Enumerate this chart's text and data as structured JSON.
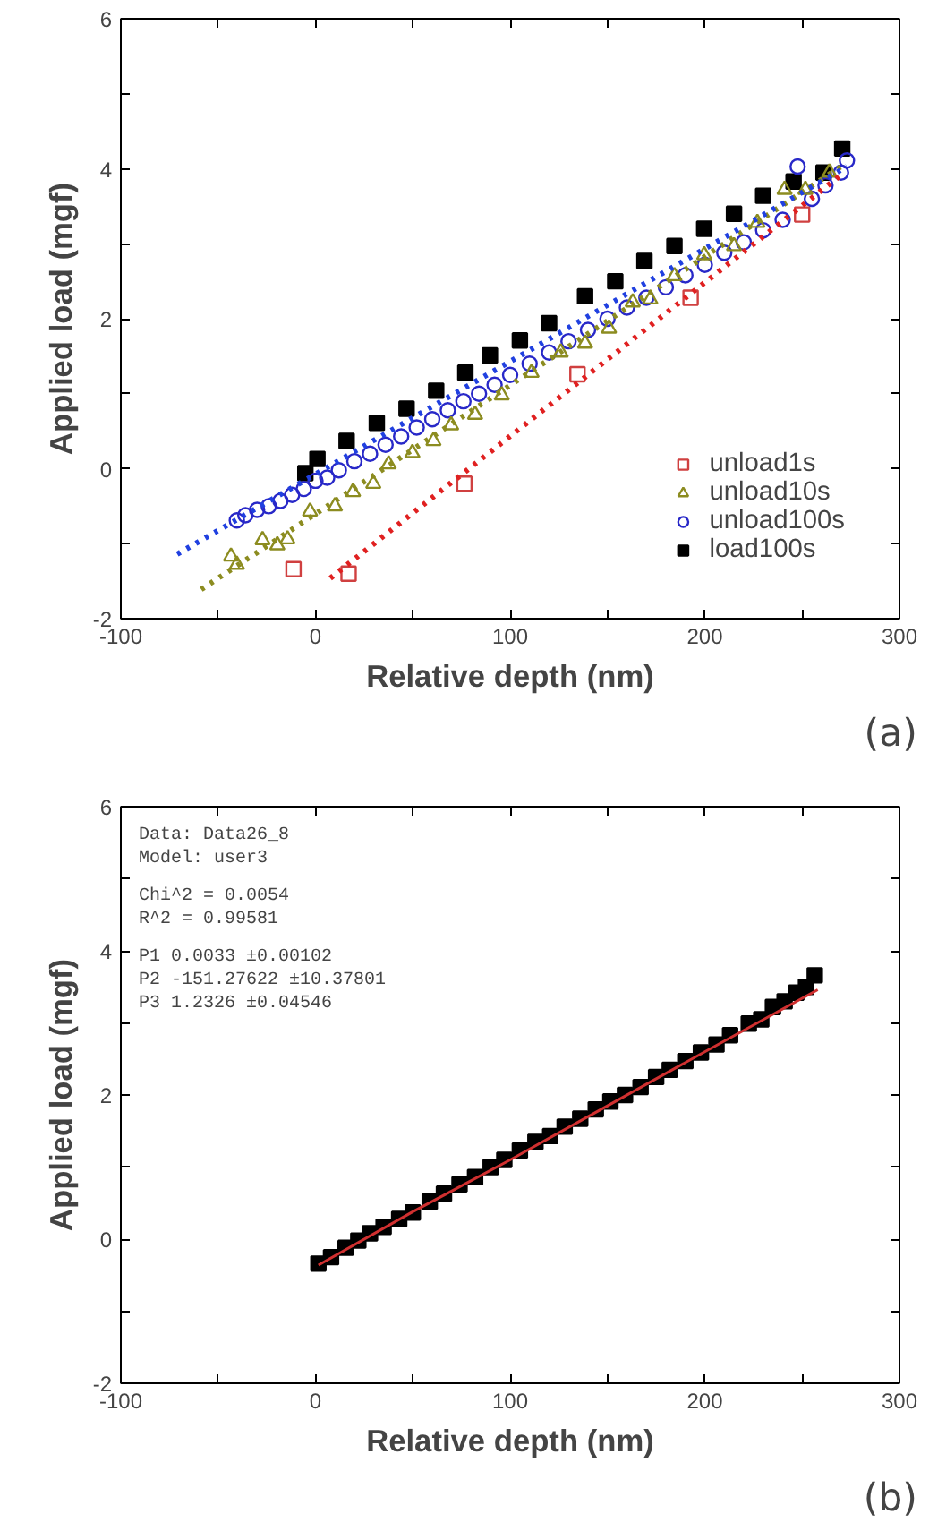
{
  "chart_data": [
    {
      "type": "scatter",
      "xlabel": "Relative depth (nm)",
      "ylabel": "Applied load (mgf)",
      "xlim": [
        -100,
        300
      ],
      "ylim": [
        -2,
        6
      ],
      "xticks": [
        -100,
        {
          "value": -50,
          "label": null
        },
        0,
        {
          "value": 50,
          "label": null
        },
        100,
        {
          "value": 150,
          "label": null
        },
        200,
        {
          "value": 250,
          "label": null
        },
        300
      ],
      "yticks": [
        -2,
        {
          "value": -1,
          "label": null
        },
        0,
        {
          "value": 1,
          "label": null
        },
        2,
        {
          "value": 3,
          "label": null
        },
        4,
        {
          "value": 5,
          "label": null
        },
        6
      ],
      "grid": false,
      "legend": "bottom right",
      "annotations": [
        "(a)"
      ],
      "series": [
        {
          "name": "unload1s",
          "marker": "square",
          "color": "#d04040",
          "x": [
            -11.3,
            17,
            76.5,
            134.6,
            192.7,
            250
          ],
          "values": [
            -1.34,
            -1.4,
            -0.2,
            1.26,
            2.28,
            3.39
          ]
        },
        {
          "name": "unload10s",
          "marker": "triangle",
          "color": "#8c8c20",
          "x": [
            -43.4,
            -40.4,
            -27.2,
            -19.6,
            -14.4,
            -2.8,
            10,
            19.3,
            29.7,
            37.6,
            49.8,
            60.6,
            69.7,
            82,
            95.7,
            111,
            126,
            138.5,
            150.8,
            163,
            172,
            184.4,
            199.7,
            215,
            227,
            241,
            251.7,
            264
          ],
          "values": [
            -1.17,
            -1.28,
            -0.95,
            -1.02,
            -0.94,
            -0.57,
            -0.5,
            -0.31,
            -0.2,
            0.06,
            0.21,
            0.37,
            0.58,
            0.72,
            0.98,
            1.28,
            1.55,
            1.67,
            1.87,
            2.22,
            2.26,
            2.57,
            2.85,
            2.97,
            3.28,
            3.72,
            3.72,
            3.95
          ]
        },
        {
          "name": "unload100s",
          "marker": "circle",
          "color": "#2828c8",
          "x": [
            -40.4,
            -36,
            -30,
            -24,
            -18,
            -12,
            -6,
            0,
            6,
            12,
            20,
            28,
            36,
            44,
            52,
            60,
            68,
            76,
            84,
            92,
            100,
            110,
            120,
            130,
            140,
            150,
            160,
            170,
            180,
            190,
            200,
            210,
            220,
            230,
            240,
            247.7,
            255,
            262,
            270,
            273
          ],
          "values": [
            -0.69,
            -0.62,
            -0.55,
            -0.5,
            -0.43,
            -0.35,
            -0.27,
            -0.16,
            -0.12,
            -0.02,
            0.1,
            0.2,
            0.32,
            0.43,
            0.55,
            0.66,
            0.78,
            0.9,
            1.0,
            1.12,
            1.25,
            1.4,
            1.55,
            1.7,
            1.85,
            2.0,
            2.15,
            2.28,
            2.42,
            2.58,
            2.72,
            2.88,
            3.02,
            3.18,
            3.32,
            4.03,
            3.6,
            3.78,
            3.95,
            4.11
          ]
        },
        {
          "name": "load100s",
          "marker": "square",
          "color": "#000000",
          "x": [
            -5.2,
            1,
            16,
            31.5,
            46.8,
            62,
            77,
            89.6,
            105,
            120,
            138.5,
            154,
            169,
            184.4,
            199.7,
            215,
            230,
            245.6,
            261,
            270.6
          ],
          "values": [
            -0.06,
            0.13,
            0.37,
            0.61,
            0.8,
            1.04,
            1.28,
            1.51,
            1.71,
            1.94,
            2.3,
            2.5,
            2.77,
            2.97,
            3.2,
            3.4,
            3.64,
            3.83,
            3.95,
            4.27
          ]
        },
        {
          "type": "line",
          "line_style": "dotted",
          "color": "#e02020",
          "x": [
            7.6,
            271.6
          ],
          "values": [
            -1.46,
            3.95
          ]
        },
        {
          "type": "line",
          "line_style": "dotted",
          "color": "#8c8c20",
          "x": [
            -58.7,
            270
          ],
          "values": [
            -1.61,
            4.03
          ]
        },
        {
          "type": "line",
          "line_style": "dotted",
          "color": "#2040e0",
          "x": [
            -71,
            273
          ],
          "values": [
            -1.14,
            4.03
          ]
        }
      ]
    },
    {
      "type": "scatter",
      "xlabel": "Relative depth (nm)",
      "ylabel": "Applied load (mgf)",
      "xlim": [
        -100,
        300
      ],
      "ylim": [
        -2,
        6
      ],
      "xticks": [
        -100,
        {
          "value": -50,
          "label": null
        },
        0,
        {
          "value": 50,
          "label": null
        },
        100,
        {
          "value": 150,
          "label": null
        },
        200,
        {
          "value": 250,
          "label": null
        },
        300
      ],
      "yticks": [
        -2,
        {
          "value": -1,
          "label": null
        },
        0,
        {
          "value": 1,
          "label": null
        },
        2,
        {
          "value": 3,
          "label": null
        },
        4,
        {
          "value": 5,
          "label": null
        },
        6
      ],
      "grid": false,
      "legend": false,
      "annotations": [
        "Data: Data26_8",
        "Model: user3",
        "Chi^2  = 0.0054",
        "R^2   = 0.99581",
        "P1   0.0033 ±0.00102",
        "P2   -151.27622   ±10.37801",
        "P3   1.2326 ±0.04546",
        "(b)"
      ],
      "series": [
        {
          "marker": "square",
          "color": "#000000",
          "x": [
            1.5,
            8,
            15.5,
            22,
            28,
            35,
            43,
            50,
            58.7,
            66,
            74,
            82,
            90,
            97,
            105,
            113,
            120.6,
            128,
            136,
            144,
            151.5,
            159,
            167,
            175,
            182,
            190,
            198,
            206,
            213,
            222.6,
            229,
            235,
            241,
            247,
            252,
            256.5
          ],
          "values": [
            -0.34,
            -0.25,
            -0.12,
            -0.02,
            0.08,
            0.17,
            0.28,
            0.37,
            0.52,
            0.63,
            0.76,
            0.86,
            1.0,
            1.1,
            1.23,
            1.35,
            1.43,
            1.56,
            1.67,
            1.8,
            1.91,
            2.0,
            2.11,
            2.25,
            2.35,
            2.47,
            2.59,
            2.7,
            2.83,
            2.99,
            3.05,
            3.22,
            3.3,
            3.42,
            3.5,
            3.66
          ]
        },
        {
          "type": "line",
          "line_style": "solid",
          "color": "#d03030",
          "x": [
            1.5,
            50,
            100,
            150,
            200,
            258
          ],
          "values": [
            -0.36,
            0.38,
            1.1,
            1.85,
            2.6,
            3.46
          ]
        }
      ]
    }
  ]
}
